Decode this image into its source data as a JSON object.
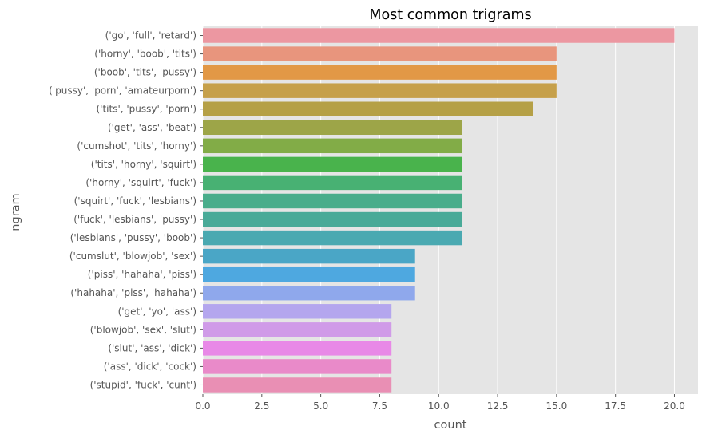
{
  "chart_data": {
    "type": "bar",
    "orientation": "horizontal",
    "title": "Most common trigrams",
    "xlabel": "count",
    "ylabel": "ngram",
    "xlim": [
      0,
      21
    ],
    "xticks": [
      "0.0",
      "2.5",
      "5.0",
      "7.5",
      "10.0",
      "12.5",
      "15.0",
      "17.5",
      "20.0"
    ],
    "grid": true,
    "background": "#e5e5e5",
    "categories": [
      "('go', 'full', 'retard')",
      "('horny', 'boob', 'tits')",
      "('boob', 'tits', 'pussy')",
      "('pussy', 'porn', 'amateurporn')",
      "('tits', 'pussy', 'porn')",
      "('get', 'ass', 'beat')",
      "('cumshot', 'tits', 'horny')",
      "('tits', 'horny', 'squirt')",
      "('horny', 'squirt', 'fuck')",
      "('squirt', 'fuck', 'lesbians')",
      "('fuck', 'lesbians', 'pussy')",
      "('lesbians', 'pussy', 'boob')",
      "('cumslut', 'blowjob', 'sex')",
      "('piss', 'hahaha', 'piss')",
      "('hahaha', 'piss', 'hahaha')",
      "('get', 'yo', 'ass')",
      "('blowjob', 'sex', 'slut')",
      "('slut', 'ass', 'dick')",
      "('ass', 'dick', 'cock')",
      "('stupid', 'fuck', 'cunt')"
    ],
    "values": [
      20,
      15,
      15,
      15,
      14,
      11,
      11,
      11,
      11,
      11,
      11,
      11,
      9,
      9,
      9,
      8,
      8,
      8,
      8,
      8
    ],
    "colors": [
      "#ec97a1",
      "#e8957d",
      "#e29846",
      "#c6a04a",
      "#b5a046",
      "#9da548",
      "#82ac47",
      "#49b34c",
      "#48b173",
      "#49ad8b",
      "#49aa98",
      "#4aa9b1",
      "#4aa6c6",
      "#4ea8e0",
      "#8fa8ec",
      "#b4a6ee",
      "#d09be8",
      "#e889e7",
      "#e98ac9",
      "#e98fb4"
    ]
  }
}
